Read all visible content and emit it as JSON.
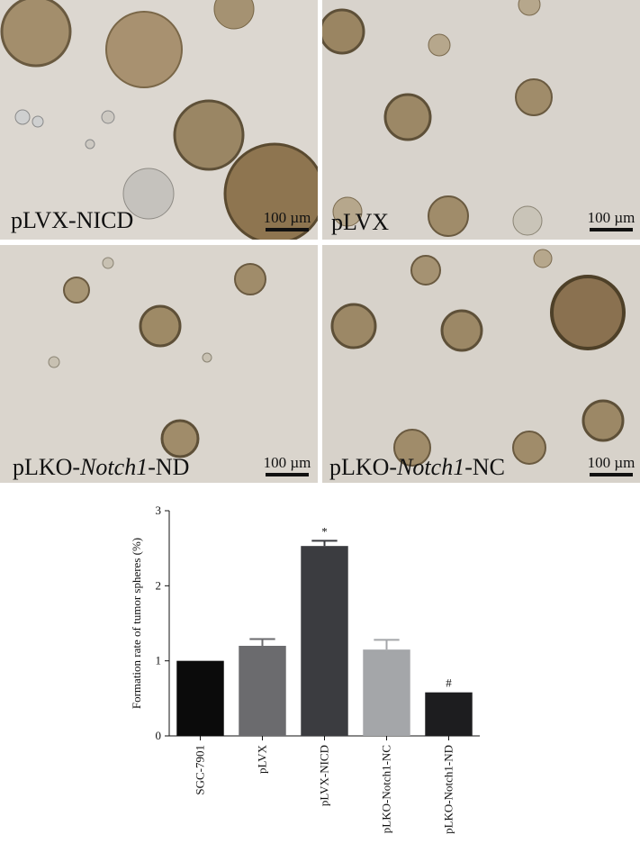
{
  "panels": [
    {
      "label_prefix": "pLVX-NICD",
      "label_italic": "",
      "label_suffix": "",
      "scale": "100 µm"
    },
    {
      "label_prefix": "pLVX",
      "label_italic": "",
      "label_suffix": "",
      "scale": "100 µm"
    },
    {
      "label_prefix": "pLKO-",
      "label_italic": "Notch1",
      "label_suffix": "-ND",
      "scale": "100 µm"
    },
    {
      "label_prefix": "pLKO-",
      "label_italic": "Notch1",
      "label_suffix": "-NC",
      "scale": "100 µm"
    }
  ],
  "chart_data": {
    "type": "bar",
    "categories": [
      "SGC-7901",
      "pLVX",
      "pLVX-NICD",
      "pLKO-Notch1-NC",
      "pLKO-Notch1-ND"
    ],
    "values": [
      1.0,
      1.2,
      2.53,
      1.15,
      0.58
    ],
    "errors": [
      0,
      0.09,
      0.07,
      0.13,
      0
    ],
    "significance": [
      "",
      "",
      "*",
      "",
      "#"
    ],
    "colors": [
      "#0b0b0b",
      "#6b6b6e",
      "#3b3c40",
      "#a4a6a9",
      "#1d1d1f"
    ],
    "ylabel": "Formation rate of tumor spheres (%)",
    "ylim": [
      0,
      3
    ],
    "yticks": [
      0,
      1,
      2,
      3
    ],
    "grid": false
  }
}
